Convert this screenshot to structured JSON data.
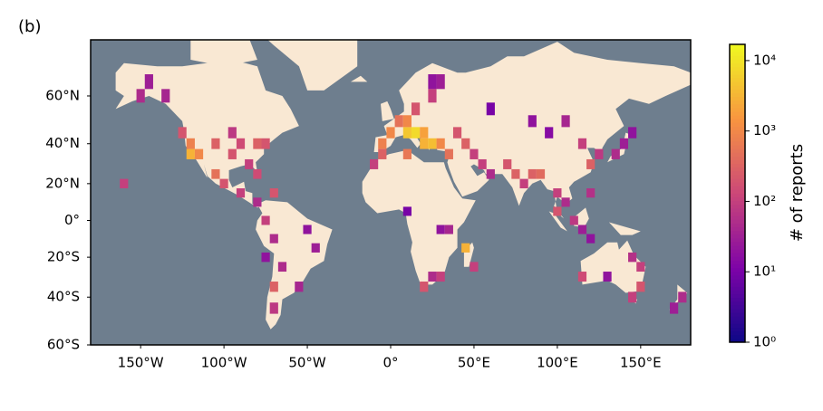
{
  "chart_data": {
    "type": "map-heatmap",
    "panel_label": "(b)",
    "xlim": [
      -180,
      180
    ],
    "xticks": [
      {
        "value": -150,
        "label": "150°W"
      },
      {
        "value": -100,
        "label": "100°W"
      },
      {
        "value": -50,
        "label": "50°W"
      },
      {
        "value": 0,
        "label": "0°"
      },
      {
        "value": 50,
        "label": "50°E"
      },
      {
        "value": 100,
        "label": "100°E"
      },
      {
        "value": 150,
        "label": "150°E"
      }
    ],
    "ylim": [
      -60,
      77.5
    ],
    "yticks": [
      {
        "value": -60,
        "label": "60°S"
      },
      {
        "value": -40,
        "label": "40°S"
      },
      {
        "value": -20,
        "label": "20°S"
      },
      {
        "value": 0,
        "label": "0°"
      },
      {
        "value": 20,
        "label": "20°N"
      },
      {
        "value": 40,
        "label": "40°N"
      },
      {
        "value": 60,
        "label": "60°N"
      }
    ],
    "cell_size": 5,
    "cells": {
      "lon": [
        10,
        15,
        20,
        25,
        0,
        -5,
        5,
        10,
        20,
        30,
        35,
        15,
        25,
        30,
        25,
        40,
        45,
        50,
        55,
        60,
        -5,
        -10,
        10,
        70,
        75,
        80,
        85,
        90,
        100,
        105,
        100,
        110,
        115,
        120,
        120,
        120,
        115,
        125,
        135,
        140,
        145,
        105,
        85,
        95,
        60,
        10,
        30,
        35,
        45,
        30,
        20,
        25,
        50,
        -120,
        -120,
        -125,
        -115,
        -105,
        -95,
        -90,
        -80,
        -75,
        -85,
        -80,
        -100,
        -105,
        -90,
        -80,
        -70,
        -150,
        -145,
        -135,
        -160,
        -95,
        -75,
        -70,
        -75,
        -70,
        -65,
        -45,
        -70,
        -55,
        -50,
        145,
        150,
        150,
        130,
        115,
        175,
        170,
        145
      ],
      "lat": [
        45,
        45,
        40,
        40,
        45,
        40,
        50,
        50,
        45,
        40,
        35,
        55,
        60,
        65,
        65,
        45,
        40,
        35,
        30,
        25,
        35,
        30,
        35,
        30,
        25,
        20,
        25,
        25,
        15,
        10,
        5,
        0,
        -5,
        -10,
        15,
        30,
        40,
        35,
        35,
        40,
        45,
        50,
        50,
        45,
        55,
        5,
        -5,
        -5,
        -15,
        -30,
        -35,
        -30,
        -25,
        35,
        40,
        45,
        35,
        40,
        35,
        40,
        40,
        40,
        30,
        25,
        20,
        25,
        15,
        10,
        15,
        60,
        65,
        60,
        20,
        45,
        0,
        -10,
        -20,
        -35,
        -25,
        -15,
        -45,
        -35,
        -5,
        -20,
        -25,
        -35,
        -30,
        -30,
        -40,
        -45,
        -40
      ],
      "values": [
        5000,
        8000,
        3000,
        4000,
        1000,
        800,
        500,
        1000,
        2000,
        1000,
        500,
        200,
        100,
        30,
        20,
        200,
        300,
        100,
        100,
        50,
        300,
        100,
        600,
        200,
        300,
        100,
        300,
        400,
        100,
        50,
        200,
        80,
        30,
        20,
        60,
        300,
        100,
        80,
        50,
        30,
        20,
        40,
        20,
        15,
        10,
        10,
        20,
        40,
        3000,
        100,
        200,
        50,
        100,
        3000,
        800,
        200,
        1000,
        300,
        200,
        150,
        300,
        200,
        100,
        150,
        200,
        500,
        100,
        50,
        200,
        50,
        30,
        40,
        100,
        80,
        100,
        50,
        20,
        300,
        50,
        30,
        80,
        40,
        20,
        60,
        100,
        200,
        20,
        150,
        50,
        30,
        100
      ]
    },
    "colorbar": {
      "label": "# of reports",
      "scale": "log",
      "clim": [
        1,
        17000
      ],
      "ticks": [
        {
          "value": 1,
          "label": "10⁰"
        },
        {
          "value": 10,
          "label": "10¹"
        },
        {
          "value": 100,
          "label": "10²"
        },
        {
          "value": 1000,
          "label": "10³"
        },
        {
          "value": 10000,
          "label": "10⁴"
        }
      ],
      "colormap": [
        "#0d0887",
        "#7e03a8",
        "#cc4778",
        "#f89540",
        "#f0f921"
      ]
    },
    "ocean_color": "#6e7e8e",
    "land_color": "#f9e8d3"
  }
}
